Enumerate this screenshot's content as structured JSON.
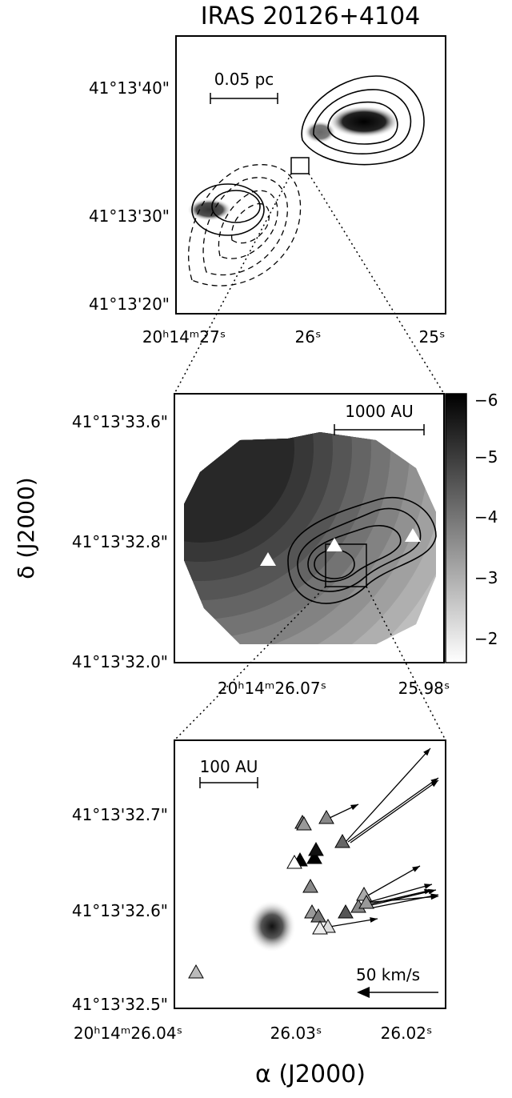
{
  "title": "IRAS 20126+4104",
  "y_axis_label": "δ (J2000)",
  "x_axis_label": "α (J2000)",
  "panels": [
    {
      "scale_bar": "0.05 pc",
      "y_tick_labels": [
        "41°13'40\"",
        "41°13'30\"",
        "41°13'20\""
      ],
      "x_tick_labels": [
        "20ʰ14ᵐ27ˢ",
        "26ˢ",
        "25ˢ"
      ]
    },
    {
      "scale_bar": "1000 AU",
      "y_tick_labels": [
        "41°13'33.6\"",
        "41°13'32.8\"",
        "41°13'32.0\""
      ],
      "x_tick_labels": [
        "20ʰ14ᵐ26.07ˢ",
        "25.98ˢ"
      ],
      "colorbar_tick_labels": [
        "−6",
        "−5",
        "−4",
        "−3",
        "−2"
      ]
    },
    {
      "scale_bar": "100 AU",
      "velocity_scale": "50 km/s",
      "y_tick_labels": [
        "41°13'32.7\"",
        "41°13'32.6\"",
        "41°13'32.5\""
      ],
      "x_tick_labels": [
        "20ʰ14ᵐ26.04ˢ",
        "26.03ˢ",
        "26.02ˢ"
      ]
    }
  ]
}
